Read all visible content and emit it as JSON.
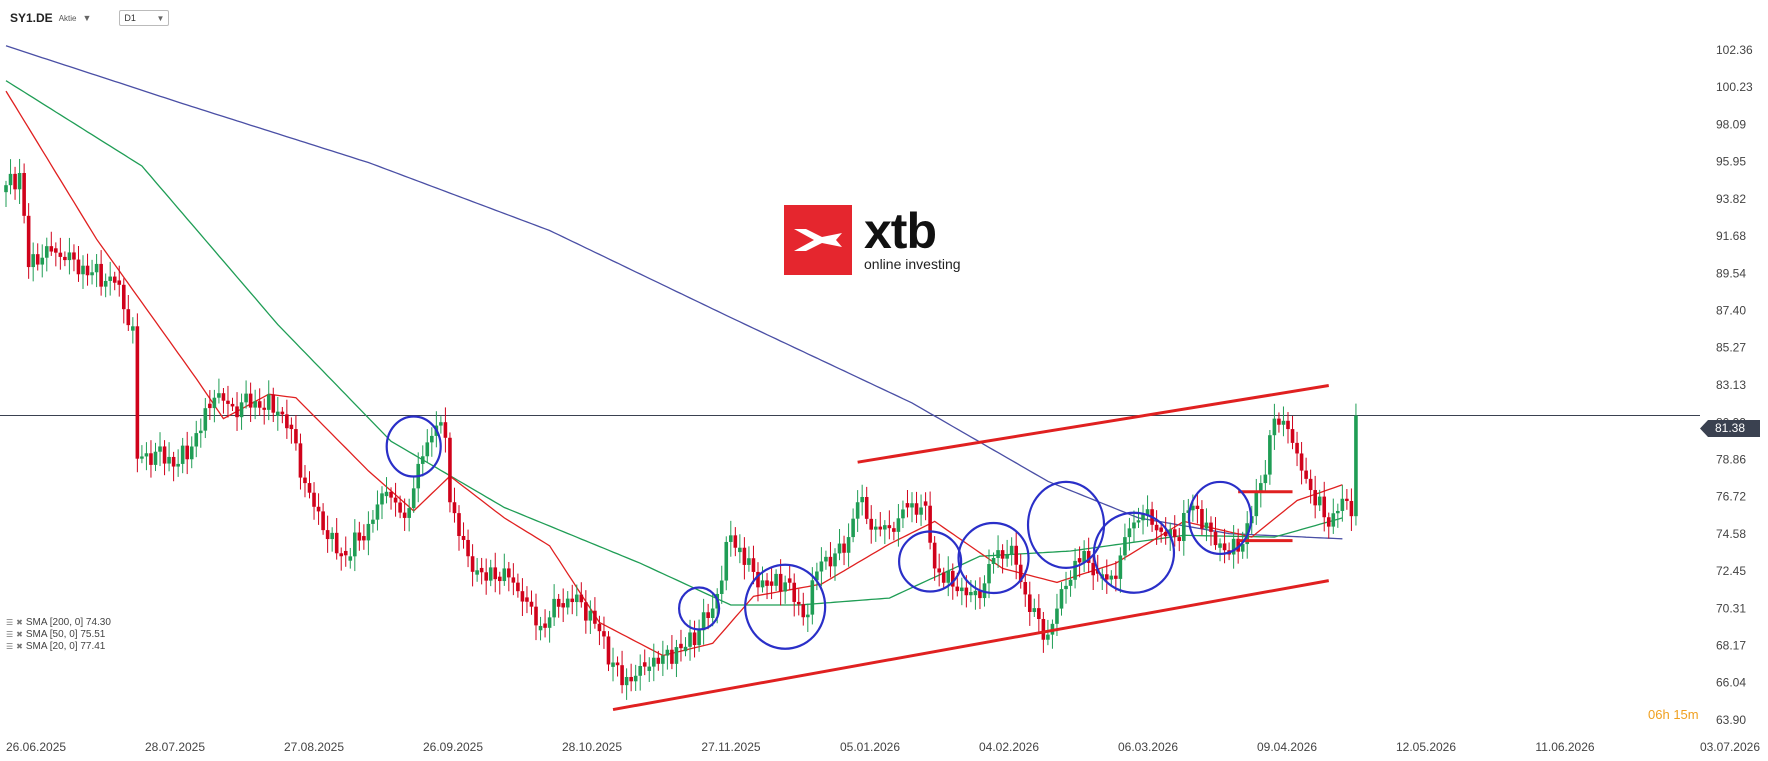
{
  "toolbar": {
    "symbol": "SY1.DE",
    "type_label": "Aktie",
    "timeframe": "D1"
  },
  "logo": {
    "word": "xtb",
    "tagline": "online investing"
  },
  "legend": [
    {
      "label": "SMA [200, 0] 74.30"
    },
    {
      "label": "SMA [50, 0] 75.51"
    },
    {
      "label": "SMA [20, 0] 77.41"
    }
  ],
  "countdown": {
    "hours": "06",
    "h": "h",
    "minutes": "15",
    "m": "m"
  },
  "current_price": "81.38",
  "colors": {
    "up": "#1f9d55",
    "down": "#d0021b",
    "sma200": "#4a4fa5",
    "sma50": "#1f9d55",
    "sma20": "#e02020",
    "trend": "#e02020",
    "circle": "#2a2fc8",
    "price_line": "#3a4150"
  },
  "chart_data": {
    "type": "candlestick",
    "title": "",
    "xlabel": "",
    "ylabel": "",
    "ylim": [
      63.9,
      104.5
    ],
    "y_ticks": [
      "102.36",
      "100.23",
      "98.09",
      "95.95",
      "93.82",
      "91.68",
      "89.54",
      "87.40",
      "85.27",
      "83.13",
      "80.99",
      "78.86",
      "76.72",
      "74.58",
      "72.45",
      "70.31",
      "68.17",
      "66.04",
      "63.90"
    ],
    "x_ticks": [
      "26.06.2025",
      "28.07.2025",
      "27.08.2025",
      "26.09.2025",
      "28.10.2025",
      "27.11.2025",
      "05.01.2026",
      "04.02.2026",
      "06.03.2026",
      "09.04.2026",
      "12.05.2026",
      "11.06.2026",
      "03.07.2026"
    ],
    "close_anchors": [
      [
        0,
        94.6
      ],
      [
        3,
        95.3
      ],
      [
        5,
        89.9
      ],
      [
        9,
        91.1
      ],
      [
        13,
        90.3
      ],
      [
        19,
        89.6
      ],
      [
        24,
        89.0
      ],
      [
        28,
        86.5
      ],
      [
        29,
        78.9
      ],
      [
        33,
        79.3
      ],
      [
        38,
        78.6
      ],
      [
        41,
        79.6
      ],
      [
        46,
        82.4
      ],
      [
        50,
        81.9
      ],
      [
        55,
        82.2
      ],
      [
        60,
        81.6
      ],
      [
        63,
        80.6
      ],
      [
        66,
        77.5
      ],
      [
        70,
        74.8
      ],
      [
        74,
        73.3
      ],
      [
        78,
        74.2
      ],
      [
        81,
        75.4
      ],
      [
        84,
        77.0
      ],
      [
        88,
        75.5
      ],
      [
        91,
        78.6
      ],
      [
        95,
        80.8
      ],
      [
        97,
        80.1
      ],
      [
        98,
        76.4
      ],
      [
        102,
        73.3
      ],
      [
        106,
        71.9
      ],
      [
        110,
        72.6
      ],
      [
        114,
        70.7
      ],
      [
        118,
        69.3
      ],
      [
        122,
        70.4
      ],
      [
        126,
        71.1
      ],
      [
        131,
        69.0
      ],
      [
        134,
        67.2
      ],
      [
        136,
        65.9
      ],
      [
        140,
        67.0
      ],
      [
        145,
        67.6
      ],
      [
        150,
        68.1
      ],
      [
        156,
        70.3
      ],
      [
        160,
        74.5
      ],
      [
        165,
        72.4
      ],
      [
        168,
        71.6
      ],
      [
        172,
        71.8
      ],
      [
        176,
        69.8
      ],
      [
        180,
        73.0
      ],
      [
        185,
        73.5
      ],
      [
        188,
        76.4
      ],
      [
        192,
        75.0
      ],
      [
        196,
        74.7
      ],
      [
        199,
        76.1
      ],
      [
        203,
        76.2
      ],
      [
        205,
        72.6
      ],
      [
        210,
        71.3
      ],
      [
        215,
        70.9
      ],
      [
        218,
        73.2
      ],
      [
        222,
        73.9
      ],
      [
        226,
        70.1
      ],
      [
        230,
        68.8
      ],
      [
        234,
        71.6
      ],
      [
        238,
        73.6
      ],
      [
        241,
        72.3
      ],
      [
        245,
        72.0
      ],
      [
        248,
        74.9
      ],
      [
        252,
        76.0
      ],
      [
        255,
        74.7
      ],
      [
        258,
        74.4
      ],
      [
        262,
        76.2
      ],
      [
        266,
        74.7
      ],
      [
        270,
        73.4
      ],
      [
        273,
        74.0
      ],
      [
        277,
        77.5
      ],
      [
        280,
        81.2
      ],
      [
        283,
        80.6
      ],
      [
        285,
        79.2
      ],
      [
        288,
        77.1
      ],
      [
        292,
        75.0
      ],
      [
        295,
        76.6
      ],
      [
        297,
        75.6
      ],
      [
        298,
        81.38
      ]
    ],
    "series": [
      {
        "name": "SMA [200, 0]",
        "anchors": [
          [
            0,
            102.6
          ],
          [
            40,
            99.2
          ],
          [
            80,
            95.9
          ],
          [
            120,
            92.0
          ],
          [
            160,
            87.0
          ],
          [
            200,
            82.1
          ],
          [
            230,
            77.6
          ],
          [
            250,
            75.5
          ],
          [
            270,
            74.6
          ],
          [
            295,
            74.3
          ]
        ]
      },
      {
        "name": "SMA [50, 0]",
        "anchors": [
          [
            0,
            100.6
          ],
          [
            30,
            95.7
          ],
          [
            60,
            86.6
          ],
          [
            85,
            79.9
          ],
          [
            110,
            76.1
          ],
          [
            140,
            72.9
          ],
          [
            160,
            70.5
          ],
          [
            175,
            70.5
          ],
          [
            195,
            70.9
          ],
          [
            215,
            73.3
          ],
          [
            235,
            73.6
          ],
          [
            260,
            74.5
          ],
          [
            280,
            74.4
          ],
          [
            295,
            75.5
          ]
        ]
      },
      {
        "name": "SMA [20, 0]",
        "anchors": [
          [
            0,
            100.0
          ],
          [
            20,
            91.5
          ],
          [
            42,
            83.5
          ],
          [
            48,
            81.2
          ],
          [
            58,
            82.6
          ],
          [
            64,
            82.4
          ],
          [
            80,
            78.2
          ],
          [
            90,
            75.9
          ],
          [
            98,
            77.9
          ],
          [
            110,
            75.5
          ],
          [
            120,
            73.9
          ],
          [
            131,
            69.5
          ],
          [
            145,
            67.6
          ],
          [
            156,
            68.3
          ],
          [
            165,
            71.0
          ],
          [
            180,
            71.7
          ],
          [
            195,
            74.0
          ],
          [
            205,
            75.3
          ],
          [
            220,
            72.6
          ],
          [
            232,
            71.8
          ],
          [
            245,
            72.9
          ],
          [
            260,
            75.3
          ],
          [
            275,
            74.4
          ],
          [
            285,
            76.5
          ],
          [
            295,
            77.4
          ]
        ]
      }
    ],
    "trendlines": [
      {
        "from": [
          134,
          64.5
        ],
        "to": [
          292,
          71.9
        ]
      },
      {
        "from": [
          188,
          78.7
        ],
        "to": [
          292,
          83.1
        ]
      },
      {
        "from": [
          272,
          77.0
        ],
        "to": [
          284,
          77.0
        ]
      },
      {
        "from": [
          272,
          74.2
        ],
        "to": [
          284,
          74.2
        ]
      }
    ],
    "circles": [
      {
        "i": 90,
        "p": 79.6
      },
      {
        "i": 153,
        "p": 70.3
      },
      {
        "i": 172,
        "p": 70.4
      },
      {
        "i": 204,
        "p": 73.0
      },
      {
        "i": 218,
        "p": 73.2
      },
      {
        "i": 234,
        "p": 75.1
      },
      {
        "i": 249,
        "p": 73.5
      },
      {
        "i": 268,
        "p": 75.5
      }
    ]
  }
}
